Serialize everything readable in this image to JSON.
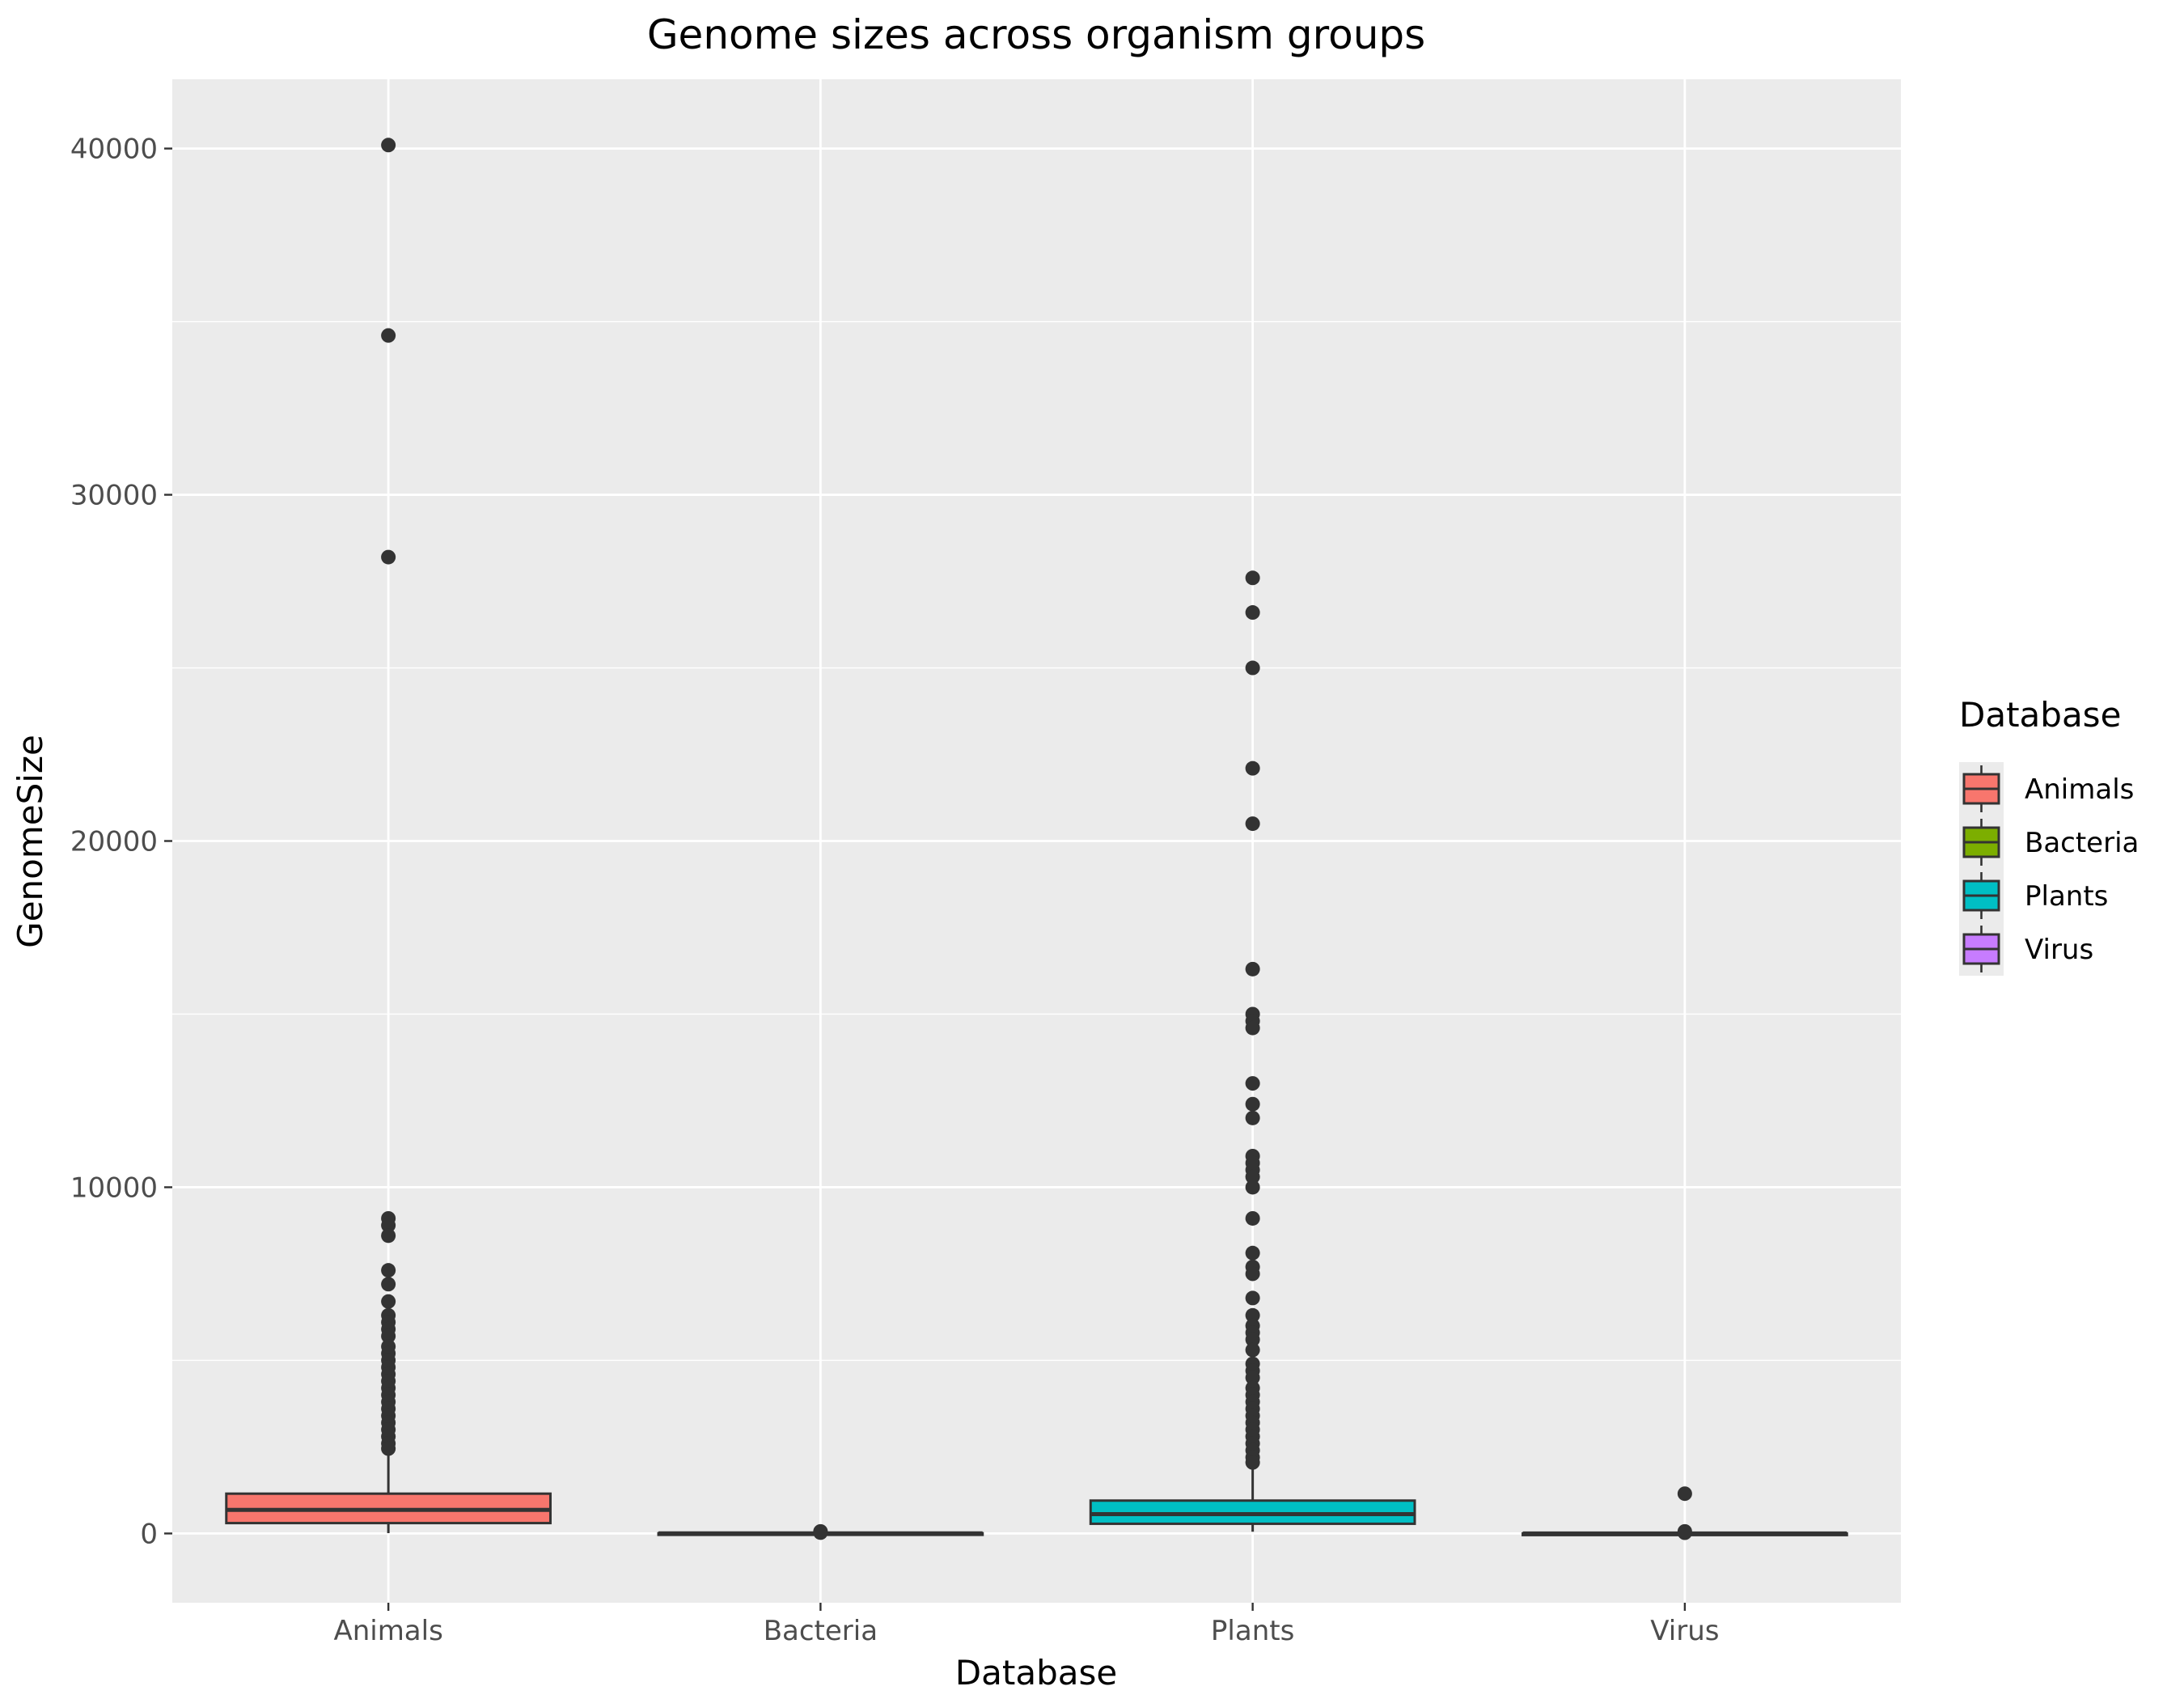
{
  "chart_data": {
    "type": "box",
    "title": "Genome sizes across organism groups",
    "xlabel": "Database",
    "ylabel": "GenomeSize",
    "categories": [
      "Animals",
      "Bacteria",
      "Plants",
      "Virus"
    ],
    "ylim": [
      -2000,
      42000
    ],
    "yticks": [
      0,
      10000,
      20000,
      30000,
      40000
    ],
    "ytick_labels": [
      "0",
      "10000",
      "20000",
      "30000",
      "40000"
    ],
    "grid": true,
    "legend": {
      "title": "Database",
      "position": "right",
      "entries": [
        "Animals",
        "Bacteria",
        "Plants",
        "Virus"
      ]
    },
    "colors": {
      "Animals": "#F8766D",
      "Bacteria": "#7CAE00",
      "Plants": "#00BFC4",
      "Virus": "#C77CFF",
      "panel": "#EBEBEB",
      "grid": "#FFFFFF",
      "outline": "#333333"
    },
    "boxes": [
      {
        "category": "Animals",
        "whisker_low": 10,
        "q1": 300,
        "median": 680,
        "q3": 1150,
        "whisker_high": 2300,
        "outliers": [
          40100,
          34600,
          28200,
          9100,
          8900,
          8600,
          7600,
          7200,
          6700,
          6300,
          6100,
          5900,
          5700,
          5400,
          5200,
          5000,
          4800,
          4600,
          4400,
          4200,
          4000,
          3800,
          3600,
          3400,
          3200,
          3000,
          2800,
          2600,
          2450
        ]
      },
      {
        "category": "Bacteria",
        "whisker_low": 0,
        "q1": 2,
        "median": 4,
        "q3": 7,
        "whisker_high": 12,
        "outliers": [
          60,
          40,
          25
        ]
      },
      {
        "category": "Plants",
        "whisker_low": 50,
        "q1": 280,
        "median": 560,
        "q3": 950,
        "whisker_high": 1950,
        "outliers": [
          27600,
          26600,
          25000,
          22100,
          20500,
          16300,
          15000,
          14800,
          14600,
          13000,
          12400,
          12000,
          10900,
          10700,
          10500,
          10300,
          10000,
          9100,
          8100,
          7700,
          7500,
          6800,
          6300,
          6000,
          5800,
          5600,
          5300,
          4900,
          4700,
          4500,
          4200,
          4000,
          3800,
          3600,
          3400,
          3200,
          3000,
          2800,
          2600,
          2400,
          2200,
          2050
        ]
      },
      {
        "category": "Virus",
        "whisker_low": 0,
        "q1": 0.02,
        "median": 0.04,
        "q3": 0.08,
        "whisker_high": 0.2,
        "outliers": [
          1150,
          60,
          20
        ]
      }
    ]
  }
}
